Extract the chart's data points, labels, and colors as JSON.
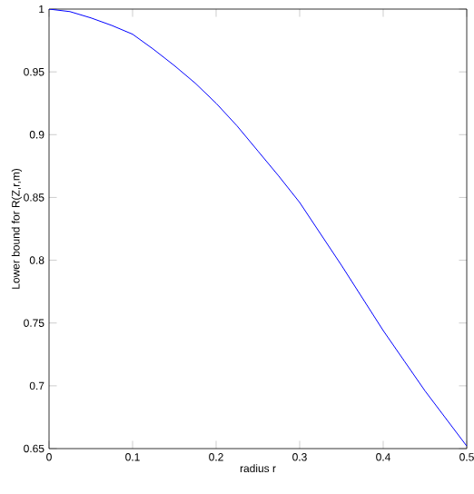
{
  "chart_data": {
    "type": "line",
    "xlabel": "radius r",
    "ylabel": "Lower bound for R(Z,r,m)",
    "x": [
      0,
      0.025,
      0.05,
      0.075,
      0.1,
      0.125,
      0.15,
      0.175,
      0.2,
      0.225,
      0.25,
      0.275,
      0.3,
      0.325,
      0.35,
      0.375,
      0.4,
      0.425,
      0.45,
      0.475,
      0.5
    ],
    "series": [
      {
        "color": "#0000ff",
        "values": [
          1.0,
          0.998,
          0.993,
          0.987,
          0.98,
          0.968,
          0.955,
          0.941,
          0.925,
          0.907,
          0.887,
          0.867,
          0.846,
          0.821,
          0.796,
          0.77,
          0.744,
          0.72,
          0.696,
          0.674,
          0.652
        ]
      }
    ],
    "xlim": [
      0,
      0.5
    ],
    "ylim": [
      0.65,
      1
    ],
    "xticks": [
      0,
      0.1,
      0.2,
      0.3,
      0.4,
      0.5
    ],
    "yticks": [
      0.65,
      0.7,
      0.75,
      0.8,
      0.85,
      0.9,
      0.95,
      1
    ],
    "marker": "none",
    "line_style": "solid"
  }
}
